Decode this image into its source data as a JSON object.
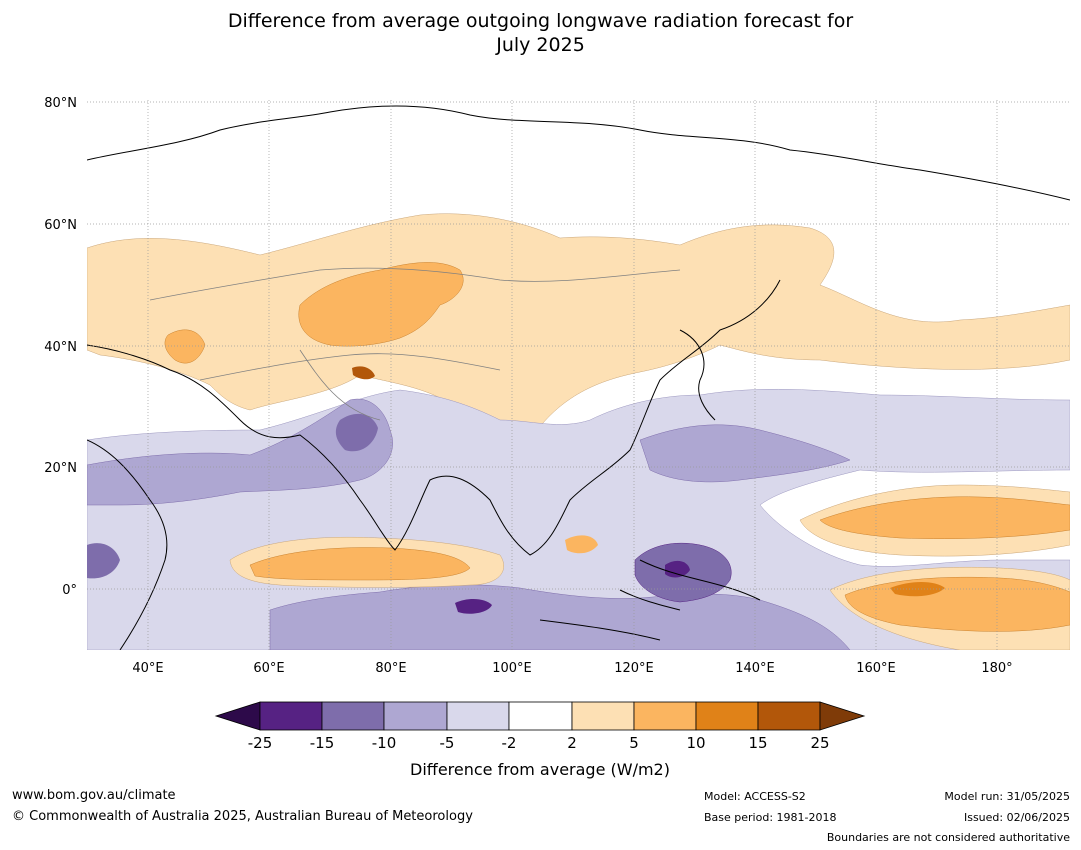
{
  "title": {
    "line1": "Difference from average outgoing longwave radiation forecast for",
    "line2": "July 2025"
  },
  "map": {
    "lat_labels": [
      "80°N",
      "60°N",
      "40°N",
      "20°N",
      "0°"
    ],
    "lon_labels": [
      "40°E",
      "60°E",
      "80°E",
      "100°E",
      "120°E",
      "140°E",
      "160°E",
      "180°"
    ]
  },
  "colorbar": {
    "ticks": [
      "-25",
      "-15",
      "-10",
      "-5",
      "-2",
      "2",
      "5",
      "10",
      "15",
      "25"
    ],
    "colors": [
      "#2d0a4a",
      "#562283",
      "#7e6dab",
      "#aea7d2",
      "#d9d8eb",
      "#ffffff",
      "#fde0b4",
      "#fbb560",
      "#e08218",
      "#b2570a",
      "#7f3b08"
    ],
    "label": "Difference from average (W/m2)"
  },
  "footer": {
    "url": "www.bom.gov.au/climate",
    "copyright": "© Commonwealth of Australia 2025, Australian Bureau of Meteorology",
    "model": "Model: ACCESS-S2",
    "base_period": "Base period: 1981-2018",
    "model_run": "Model run: 31/05/2025",
    "issued": "Issued: 02/06/2025",
    "disclaimer": "Boundaries are not considered authoritative"
  }
}
